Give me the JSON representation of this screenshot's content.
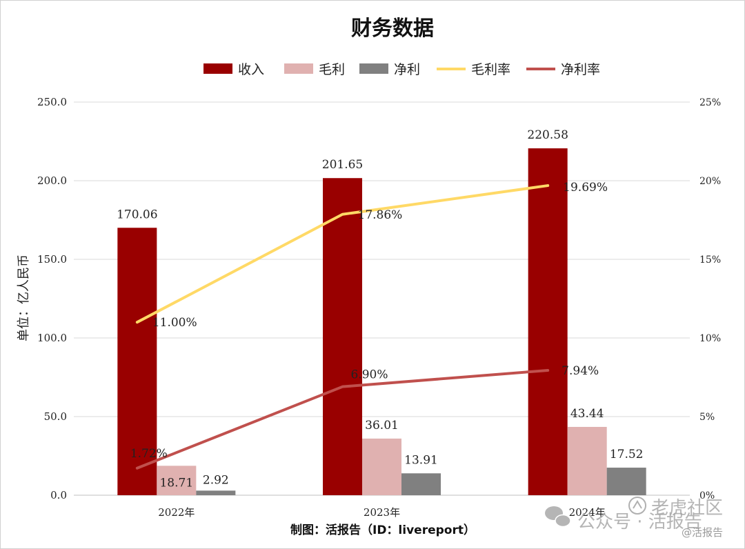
{
  "chart_data": {
    "type": "bar",
    "title": "财务数据",
    "categories": [
      "2022年",
      "2023年",
      "2024年"
    ],
    "ylabel": "单位：亿人民币",
    "ylim": [
      0,
      250
    ],
    "yticks": [
      "0.0",
      "50.0",
      "100.0",
      "150.0",
      "200.0",
      "250.0"
    ],
    "y2lim": [
      0,
      25
    ],
    "y2ticks": [
      "0%",
      "5%",
      "10%",
      "15%",
      "20%",
      "25%"
    ],
    "grid": true,
    "legend_position": "top",
    "series": [
      {
        "name": "收入",
        "kind": "bar",
        "color": "#990000",
        "values": [
          170.06,
          201.65,
          220.58
        ],
        "labels": [
          "170.06",
          "201.65",
          "220.58"
        ]
      },
      {
        "name": "毛利",
        "kind": "bar",
        "color": "#e0b1b0",
        "values": [
          18.71,
          36.01,
          43.44
        ],
        "labels": [
          "18.71",
          "36.01",
          "43.44"
        ]
      },
      {
        "name": "净利",
        "kind": "bar",
        "color": "#808080",
        "values": [
          2.92,
          13.91,
          17.52
        ],
        "labels": [
          "2.92",
          "13.91",
          "17.52"
        ]
      },
      {
        "name": "毛利率",
        "kind": "line",
        "axis": "right",
        "color": "#ffd966",
        "values": [
          11.0,
          17.86,
          19.69
        ],
        "labels": [
          "11.00%",
          "17.86%",
          "19.69%"
        ]
      },
      {
        "name": "净利率",
        "kind": "line",
        "axis": "right",
        "color": "#c0504d",
        "values": [
          1.72,
          6.9,
          7.94
        ],
        "labels": [
          "1.72%",
          "6.90%",
          "7.94%"
        ]
      }
    ]
  },
  "credit": "制图：活报告（ID：livereport）",
  "watermark": {
    "line1": "公众号 · 活报告",
    "badge": "老虎社区",
    "handle": "@活报告"
  }
}
